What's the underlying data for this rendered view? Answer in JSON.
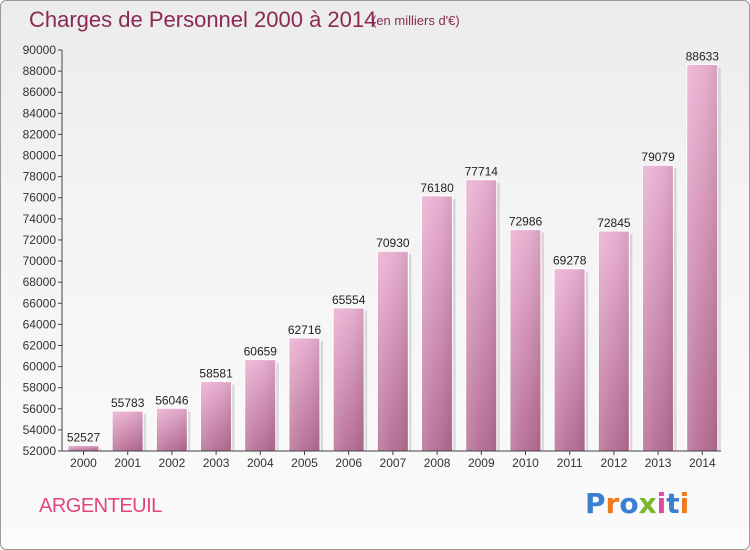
{
  "title": "Charges de Personnel 2000 à 2014",
  "subtitle": "(en milliers d'€)",
  "city": "ARGENTEUIL",
  "logo": {
    "text": "Proxiti",
    "colors": [
      "#3a7fd0",
      "#f07b1e",
      "#3a7fd0",
      "#7ab82b",
      "#e14aa0",
      "#3a7fd0",
      "#f07b1e"
    ]
  },
  "chart_data": {
    "type": "bar",
    "categories": [
      "2000",
      "2001",
      "2002",
      "2003",
      "2004",
      "2005",
      "2006",
      "2007",
      "2008",
      "2009",
      "2010",
      "2011",
      "2012",
      "2013",
      "2014"
    ],
    "values": [
      52527,
      55783,
      56046,
      58581,
      60659,
      62716,
      65554,
      70930,
      76180,
      77714,
      72986,
      69278,
      72845,
      79079,
      88633
    ],
    "ylim": [
      52000,
      90000
    ],
    "yticks": [
      52000,
      54000,
      56000,
      58000,
      60000,
      62000,
      64000,
      66000,
      68000,
      70000,
      72000,
      74000,
      76000,
      78000,
      80000,
      82000,
      84000,
      86000,
      88000,
      90000
    ],
    "grid": false,
    "bar_color": "#c8709c"
  }
}
